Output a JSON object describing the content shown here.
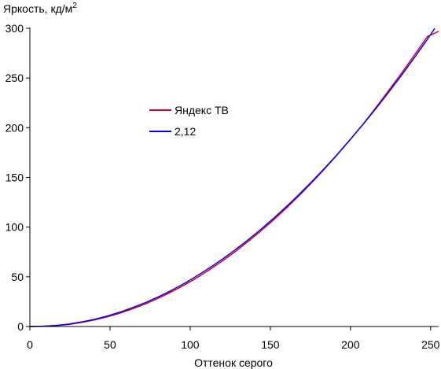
{
  "chart_data": {
    "type": "line",
    "title": "",
    "ylabel": "Яркость, кд/м",
    "ylabel_sup": "2",
    "xlabel": "Оттенок серого",
    "xlim": [
      0,
      255
    ],
    "ylim": [
      0,
      300
    ],
    "xticks": [
      0,
      50,
      100,
      150,
      200,
      250
    ],
    "yticks": [
      0,
      50,
      100,
      150,
      200,
      250,
      300
    ],
    "grid": false,
    "legend_position": "left-center",
    "series": [
      {
        "name": "Яндекс ТВ",
        "color": "#e0001b",
        "x": [
          0,
          8,
          16,
          24,
          32,
          40,
          48,
          56,
          64,
          72,
          80,
          88,
          96,
          104,
          112,
          120,
          128,
          136,
          144,
          152,
          160,
          168,
          176,
          184,
          192,
          200,
          208,
          216,
          224,
          232,
          240,
          248,
          255
        ],
        "y": [
          0,
          0.3,
          0.9,
          2.0,
          4.0,
          6.5,
          9.6,
          13.3,
          17.7,
          22.6,
          28.3,
          34.6,
          41.4,
          48.8,
          57.0,
          65.8,
          75.2,
          85.3,
          95.9,
          107.2,
          119.2,
          131.7,
          144.9,
          158.8,
          173.2,
          188.3,
          203.9,
          220.6,
          237.8,
          255.1,
          273.3,
          291.8,
          297.0
        ]
      },
      {
        "name": "2,12",
        "color": "#0000ff",
        "x": [
          0,
          8,
          16,
          24,
          32,
          40,
          48,
          56,
          64,
          72,
          80,
          88,
          96,
          104,
          112,
          120,
          128,
          136,
          144,
          152,
          160,
          168,
          176,
          184,
          192,
          200,
          208,
          216,
          224,
          232,
          240,
          248,
          255
        ],
        "y": [
          0,
          0.2,
          1.0,
          2.4,
          4.5,
          7.1,
          10.4,
          14.3,
          18.9,
          24.0,
          29.8,
          36.1,
          43.1,
          50.7,
          58.9,
          67.7,
          77.0,
          87.0,
          97.6,
          108.8,
          120.6,
          133.0,
          145.9,
          159.5,
          173.6,
          188.4,
          203.7,
          219.6,
          236.1,
          253.1,
          270.8,
          289.0,
          305.5
        ]
      }
    ]
  }
}
